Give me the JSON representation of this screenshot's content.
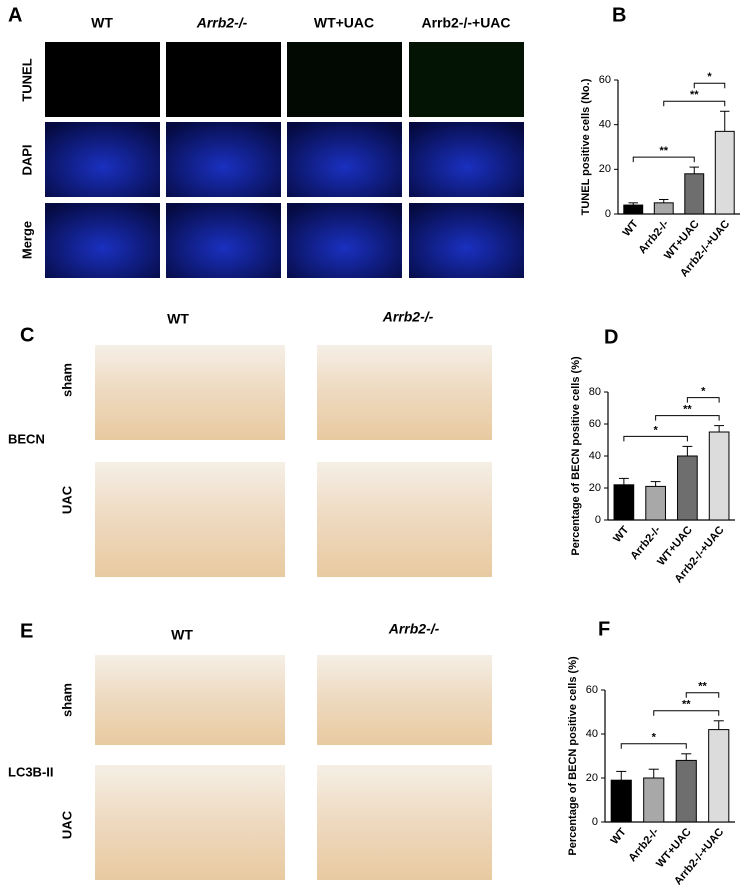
{
  "panel_a": {
    "label": "A",
    "columns": [
      "WT",
      "Arrb2-/-",
      "WT+UAC",
      "Arrb2-/-+UAC"
    ],
    "rows": [
      "TUNEL",
      "DAPI",
      "Merge"
    ]
  },
  "panel_c": {
    "label": "C",
    "columns": [
      "WT",
      "Arrb2-/-"
    ],
    "rows": [
      "sham",
      "UAC"
    ],
    "marker": "BECN"
  },
  "panel_e": {
    "label": "E",
    "columns": [
      "WT",
      "Arrb2-/-"
    ],
    "rows": [
      "sham",
      "UAC"
    ],
    "marker": "LC3B-II"
  },
  "chart_data": [
    {
      "type": "bar",
      "label": "B",
      "y_label": "TUNEL positive cells (No.)",
      "categories": [
        "WT",
        "Arrb2-/-",
        "WT+UAC",
        "Arrb2-/-+UAC"
      ],
      "values": [
        4,
        5,
        18,
        37
      ],
      "errors": [
        1,
        1.5,
        3,
        9
      ],
      "colors": [
        "#000000",
        "#a8a8a8",
        "#6e6e6e",
        "#dcdcdc"
      ],
      "ylim": [
        0,
        60
      ],
      "yticks": [
        0,
        20,
        40,
        60
      ],
      "significance": [
        {
          "from": 0,
          "to": 2,
          "text": "**"
        },
        {
          "from": 1,
          "to": 3,
          "text": "**"
        },
        {
          "from": 2,
          "to": 3,
          "text": "*"
        }
      ]
    },
    {
      "type": "bar",
      "label": "D",
      "y_label": "Percentage of BECN positive cells (%)",
      "categories": [
        "WT",
        "Arrb2-/-",
        "WT+UAC",
        "Arrb2-/-+UAC"
      ],
      "values": [
        22,
        21,
        40,
        55
      ],
      "errors": [
        4,
        3,
        6,
        4
      ],
      "colors": [
        "#000000",
        "#a8a8a8",
        "#6e6e6e",
        "#dcdcdc"
      ],
      "ylim": [
        0,
        80
      ],
      "yticks": [
        0,
        20,
        40,
        60,
        80
      ],
      "significance": [
        {
          "from": 0,
          "to": 2,
          "text": "*"
        },
        {
          "from": 1,
          "to": 3,
          "text": "**"
        },
        {
          "from": 2,
          "to": 3,
          "text": "*"
        }
      ]
    },
    {
      "type": "bar",
      "label": "F",
      "y_label": "Percentage of BECN positive cells (%)",
      "categories": [
        "WT",
        "Arrb2-/-",
        "WT+UAC",
        "Arrb2-/-+UAC"
      ],
      "values": [
        19,
        20,
        28,
        42
      ],
      "errors": [
        4,
        4,
        3,
        4
      ],
      "colors": [
        "#000000",
        "#a8a8a8",
        "#6e6e6e",
        "#dcdcdc"
      ],
      "ylim": [
        0,
        60
      ],
      "yticks": [
        0,
        20,
        40,
        60
      ],
      "significance": [
        {
          "from": 0,
          "to": 2,
          "text": "*"
        },
        {
          "from": 1,
          "to": 3,
          "text": "**"
        },
        {
          "from": 2,
          "to": 3,
          "text": "**"
        }
      ]
    }
  ]
}
